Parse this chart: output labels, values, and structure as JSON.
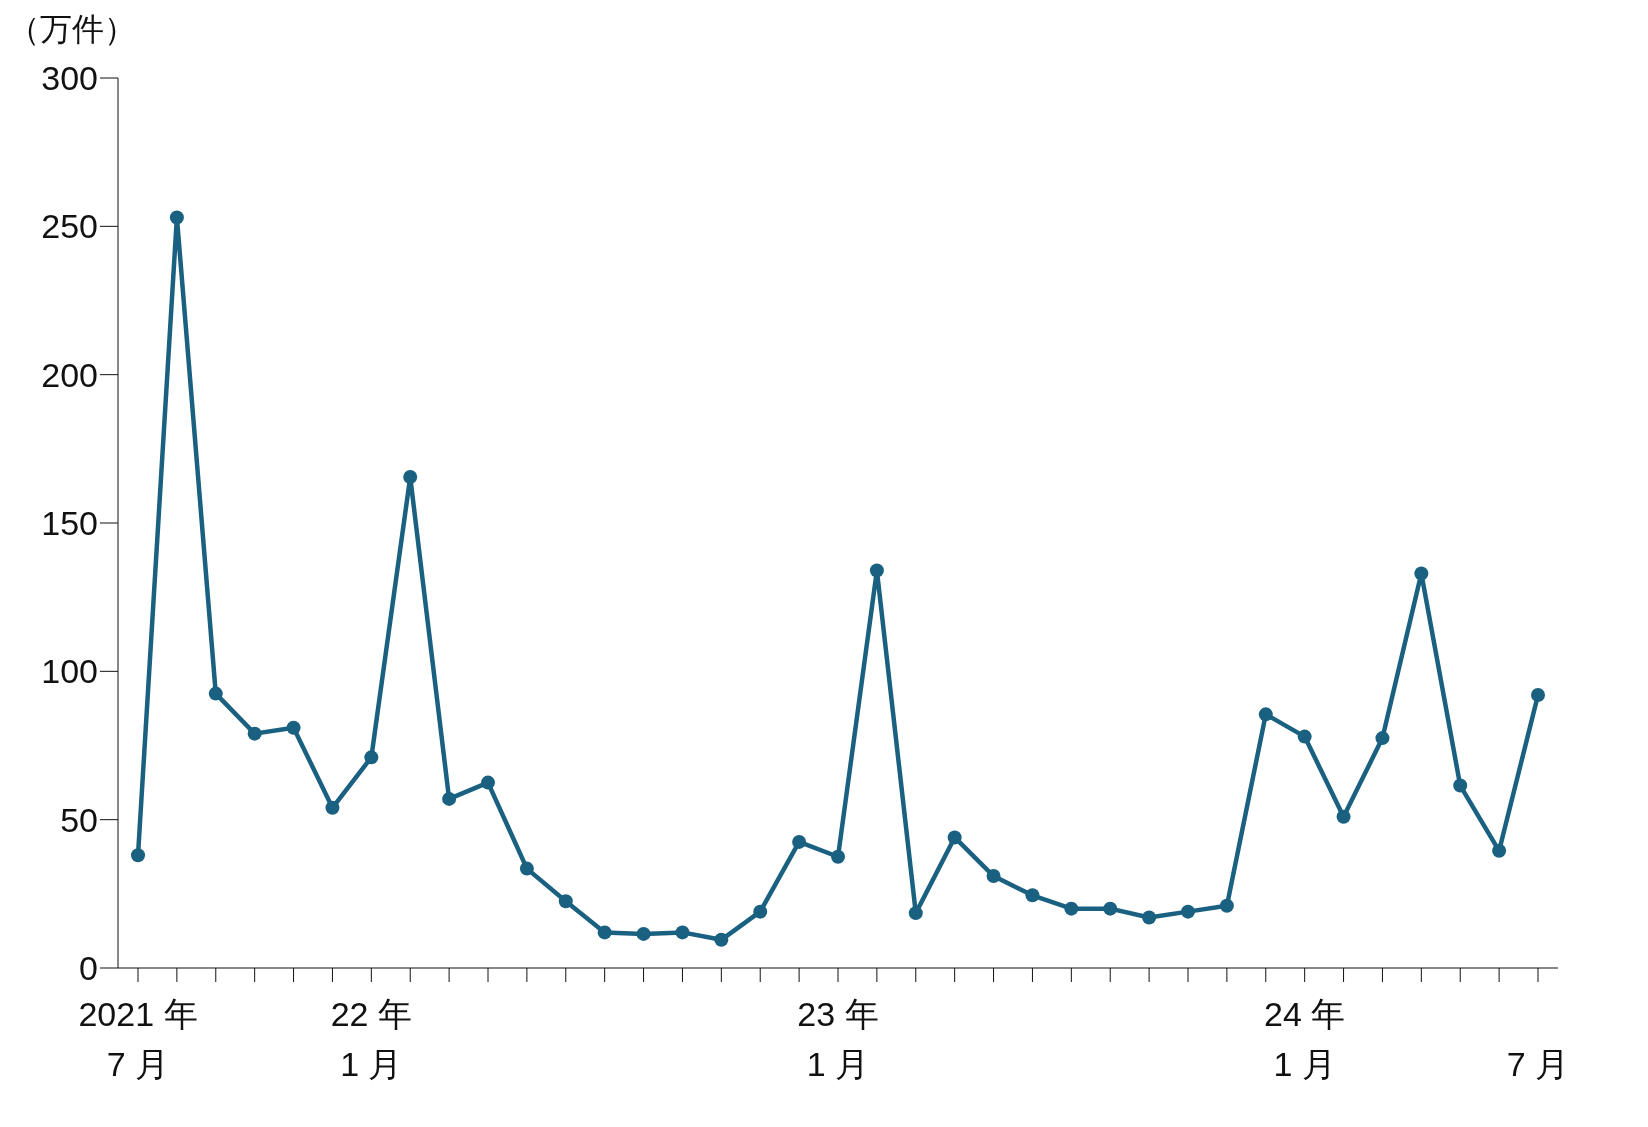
{
  "chart_data": {
    "type": "line",
    "ylabel": "（万件）",
    "categories": [
      "2021 年\n7 月",
      null,
      null,
      null,
      null,
      null,
      "22 年\n1 月",
      null,
      null,
      null,
      null,
      null,
      null,
      null,
      null,
      null,
      null,
      null,
      "23 年\n1 月",
      null,
      null,
      null,
      null,
      null,
      null,
      null,
      null,
      null,
      null,
      null,
      "24 年\n1 月",
      null,
      null,
      null,
      null,
      null,
      "7 月"
    ],
    "series": [
      {
        "color": "#1a6080",
        "values": [
          38,
          253,
          92.5,
          79,
          81,
          54,
          71,
          165.5,
          57,
          62.5,
          33.5,
          22.5,
          12,
          11.5,
          12,
          9.5,
          19,
          42.5,
          37.5,
          134,
          18.5,
          44,
          31,
          24.5,
          20,
          20,
          17,
          19,
          21,
          85.5,
          78,
          51,
          77.5,
          133,
          61.5,
          39.5,
          92
        ]
      }
    ],
    "ylim": [
      0,
      300
    ],
    "yticks": [
      0,
      50,
      100,
      150,
      200,
      250,
      300
    ],
    "grid": false,
    "marker": "circle",
    "line_style": "solid"
  }
}
